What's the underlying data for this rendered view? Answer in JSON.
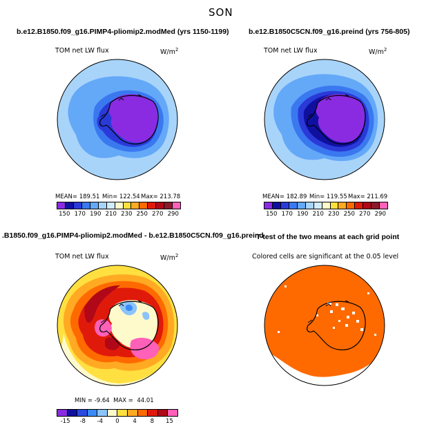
{
  "figure": {
    "title": "SON"
  },
  "panels": [
    {
      "title": "b.e12.B1850.f09_g16.PIMP4-pliomip2.modMed (yrs 1150-1199)",
      "variable": "TOM net LW flux",
      "units": "W/m",
      "units_sup": "2",
      "stats": {
        "mean": "MEAN= 189.51",
        "min": "Min= 122.54",
        "max": "Max= 213.78"
      },
      "colorbar": {
        "colors": [
          "#8a2be2",
          "#1010a0",
          "#2a3ad8",
          "#3a78f0",
          "#64a8f8",
          "#a8d4fa",
          "#d2ecfc",
          "#fffacc",
          "#ffe040",
          "#ffaa22",
          "#ff6a00",
          "#e01a0a",
          "#b00818",
          "#8a1a2a",
          "#ff60b8"
        ],
        "ticks": [
          "150",
          "170",
          "190",
          "210",
          "230",
          "250",
          "270",
          "290"
        ]
      }
    },
    {
      "title": "b.e12.B1850C5CN.f09_g16.preind (yrs 756-805)",
      "variable": "TOM net LW flux",
      "units": "W/m",
      "units_sup": "2",
      "stats": {
        "mean": "MEAN= 182.89",
        "min": "Min= 119.55",
        "max": "Max= 211.69"
      },
      "colorbar": {
        "colors": [
          "#8a2be2",
          "#1010a0",
          "#2a3ad8",
          "#3a78f0",
          "#64a8f8",
          "#a8d4fa",
          "#d2ecfc",
          "#fffacc",
          "#ffe040",
          "#ffaa22",
          "#ff6a00",
          "#e01a0a",
          "#b00818",
          "#8a1a2a",
          "#ff60b8"
        ],
        "ticks": [
          "150",
          "170",
          "190",
          "210",
          "230",
          "250",
          "270",
          "290"
        ]
      }
    },
    {
      "title": ".B1850.f09_g16.PIMP4-pliomip2.modMed - b.e12.B1850C5CN.f09_g16.preind",
      "variable": "TOM net LW flux",
      "units": "W/m",
      "units_sup": "2",
      "stats": {
        "minmax": "MIN = -9.64  MAX =  44.01"
      },
      "colorbar": {
        "colors": [
          "#8a2be2",
          "#1010a0",
          "#2a4ae0",
          "#3a8af8",
          "#8cc4fa",
          "#fffacc",
          "#ffe040",
          "#ffaa22",
          "#ff6a00",
          "#e01a0a",
          "#b00818",
          "#ff60b8"
        ],
        "ticks": [
          "-15",
          "-8",
          "-4",
          "0",
          "4",
          "8",
          "15"
        ]
      }
    },
    {
      "title": "T-test of the two means at each grid point",
      "subtitle": "Colored cells are significant at the 0.05 level"
    }
  ]
}
